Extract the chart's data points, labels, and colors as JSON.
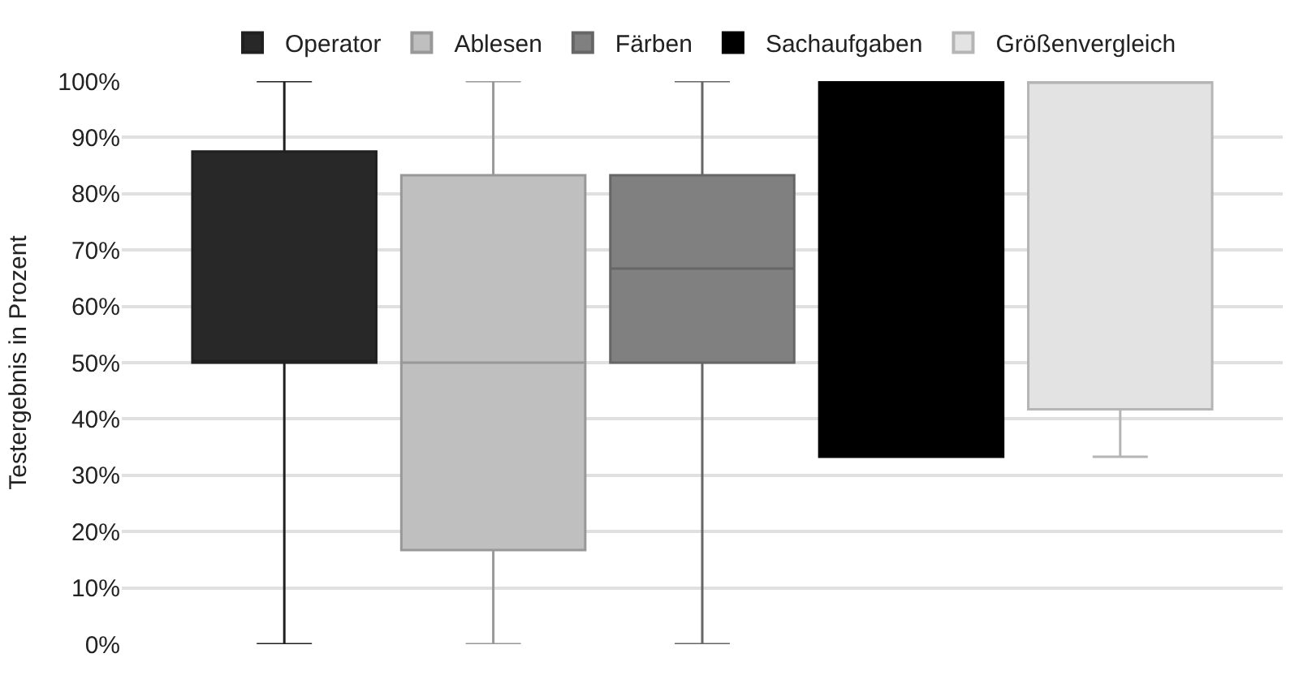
{
  "chart_data": {
    "type": "box",
    "ylabel": "Testergebnis in Prozent",
    "categories": [
      null
    ],
    "series": [
      {
        "name": "Operator",
        "color": "#282828",
        "boxes": [
          {
            "low": 0,
            "q1": 50,
            "median": 50,
            "q3": 87.5,
            "high": 100
          }
        ]
      },
      {
        "name": "Ablesen",
        "color": "#bebfbe",
        "boxes": [
          {
            "low": 0,
            "q1": 16.7,
            "median": 50,
            "q3": 83.3,
            "high": 100
          }
        ]
      },
      {
        "name": "Färben",
        "color": "#808080",
        "boxes": [
          {
            "low": 0,
            "q1": 50,
            "median": 66.7,
            "q3": 83.3,
            "high": 100
          }
        ]
      },
      {
        "name": "Sachaufgaben",
        "color": "#000000",
        "boxes": [
          {
            "low": 33.3,
            "q1": 33.3,
            "median": 66.7,
            "q3": 100,
            "high": 100
          }
        ]
      },
      {
        "name": "Größenvergleich",
        "color": "#e2e3e2",
        "boxes": [
          {
            "low": 33.3,
            "q1": 41.7,
            "median": 100,
            "q3": 100,
            "high": 100
          }
        ]
      }
    ],
    "ylim": [
      0,
      100
    ],
    "yticks": [
      {
        "value": 0,
        "label": "0%"
      },
      {
        "value": 10,
        "label": "10%"
      },
      {
        "value": 20,
        "label": "20%"
      },
      {
        "value": 30,
        "label": "30%"
      },
      {
        "value": 40,
        "label": "40%"
      },
      {
        "value": 50,
        "label": "50%"
      },
      {
        "value": 60,
        "label": "60%"
      },
      {
        "value": 70,
        "label": "70%"
      },
      {
        "value": 80,
        "label": "80%"
      },
      {
        "value": 90,
        "label": "90%"
      },
      {
        "value": 100,
        "label": "100%"
      }
    ],
    "grid": "y",
    "legend": "top"
  }
}
